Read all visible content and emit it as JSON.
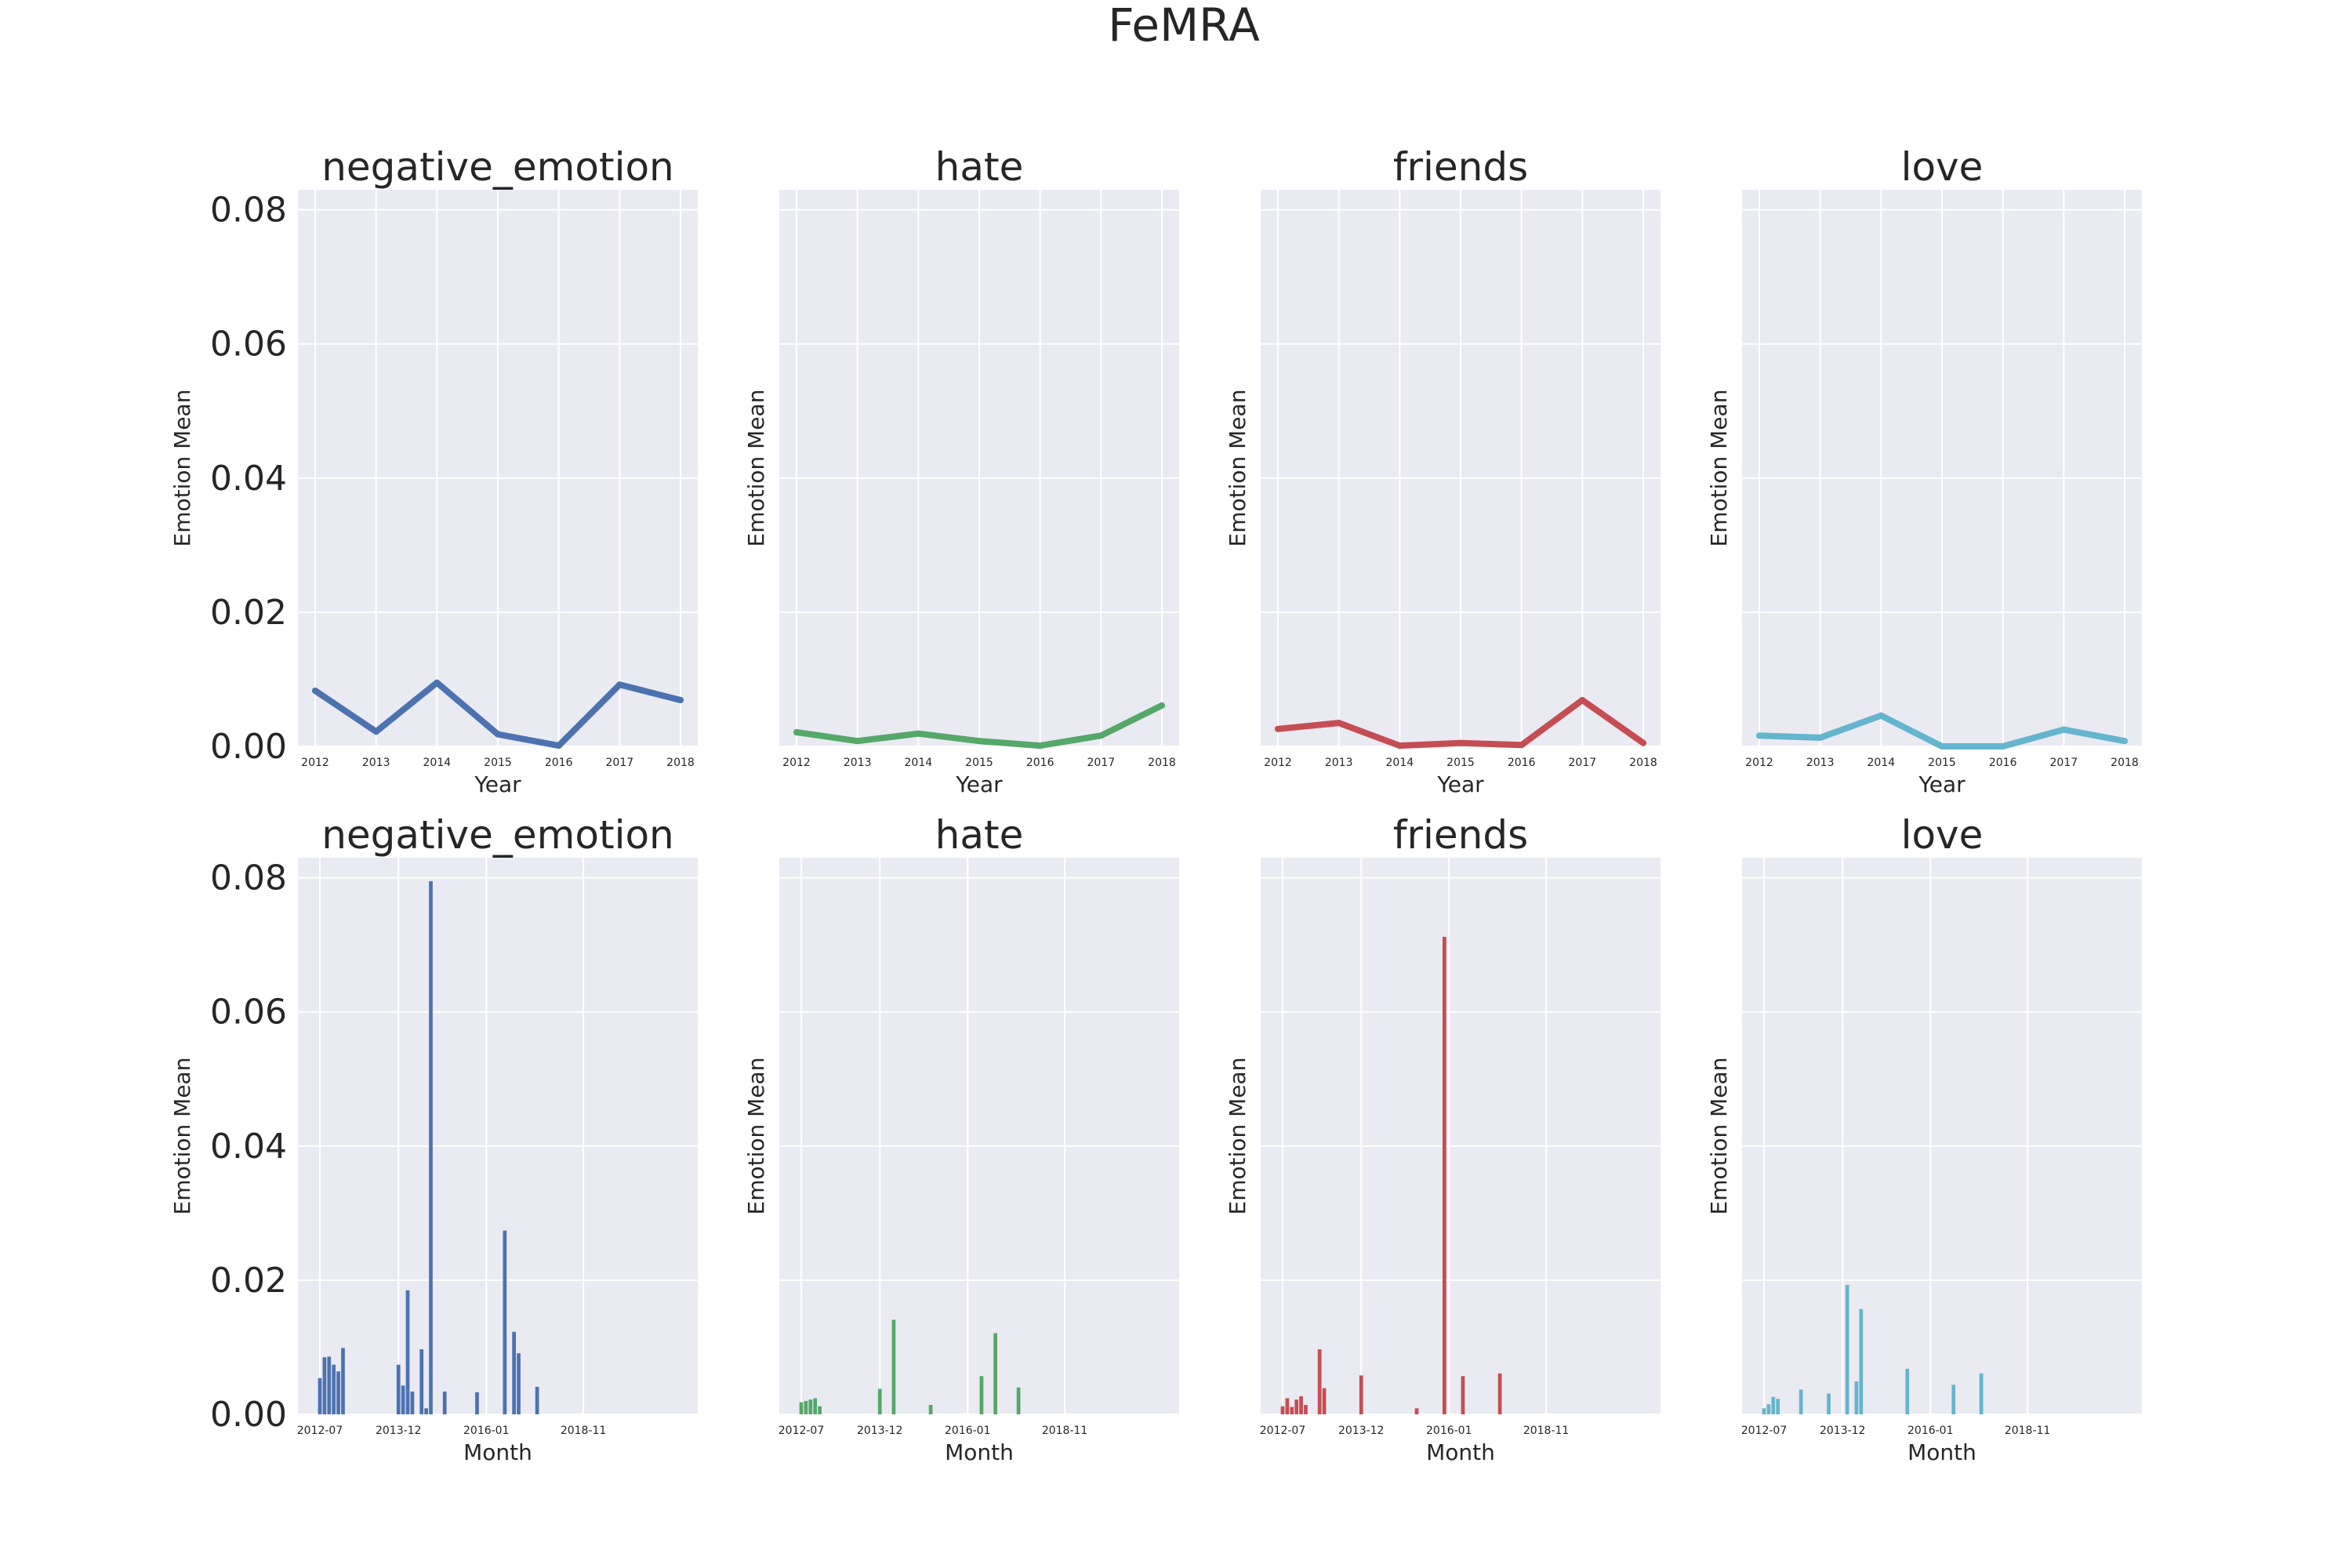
{
  "figure": {
    "title": "FeMRA"
  },
  "colors": {
    "negative_emotion": "#4c72b0",
    "hate": "#55a868",
    "friends": "#c44e52",
    "love": "#64b5cd",
    "panel_background": "#eaeaf2",
    "grid": "#ffffff",
    "text": "#262626"
  },
  "chart_data": [
    {
      "type": "line",
      "title": "negative_emotion",
      "series_key": "negative_emotion",
      "xlabel": "Year",
      "ylabel": "Emotion Mean",
      "ylim": [
        0,
        0.083
      ],
      "yticks": [
        "0.00",
        "0.02",
        "0.04",
        "0.06",
        "0.08"
      ],
      "show_ytick_labels": true,
      "grid": true,
      "x": [
        "2012",
        "2013",
        "2014",
        "2015",
        "2016",
        "2017",
        "2018"
      ],
      "values": [
        0.0083,
        0.0022,
        0.0095,
        0.0018,
        0.0001,
        0.0092,
        0.0069
      ]
    },
    {
      "type": "line",
      "title": "hate",
      "series_key": "hate",
      "xlabel": "Year",
      "ylabel": "Emotion Mean",
      "ylim": [
        0,
        0.083
      ],
      "yticks": [
        "0.00",
        "0.02",
        "0.04",
        "0.06",
        "0.08"
      ],
      "show_ytick_labels": false,
      "grid": true,
      "x": [
        "2012",
        "2013",
        "2014",
        "2015",
        "2016",
        "2017",
        "2018"
      ],
      "values": [
        0.0021,
        0.0008,
        0.0019,
        0.0008,
        0.0001,
        0.0016,
        0.0061
      ]
    },
    {
      "type": "line",
      "title": "friends",
      "series_key": "friends",
      "xlabel": "Year",
      "ylabel": "Emotion Mean",
      "ylim": [
        0,
        0.083
      ],
      "yticks": [
        "0.00",
        "0.02",
        "0.04",
        "0.06",
        "0.08"
      ],
      "show_ytick_labels": false,
      "grid": true,
      "x": [
        "2012",
        "2013",
        "2014",
        "2015",
        "2016",
        "2017",
        "2018"
      ],
      "values": [
        0.0026,
        0.0035,
        0.0001,
        0.0005,
        0.0002,
        0.0069,
        0.0005
      ]
    },
    {
      "type": "line",
      "title": "love",
      "series_key": "love",
      "xlabel": "Year",
      "ylabel": "Emotion Mean",
      "ylim": [
        0,
        0.083
      ],
      "yticks": [
        "0.00",
        "0.02",
        "0.04",
        "0.06",
        "0.08"
      ],
      "show_ytick_labels": false,
      "grid": true,
      "x": [
        "2012",
        "2013",
        "2014",
        "2015",
        "2016",
        "2017",
        "2018"
      ],
      "values": [
        0.0016,
        0.0013,
        0.0046,
        0.0,
        0.0,
        0.0025,
        0.0008
      ]
    },
    {
      "type": "bar",
      "title": "negative_emotion",
      "series_key": "negative_emotion",
      "xlabel": "Month",
      "ylabel": "Emotion Mean",
      "ylim": [
        0,
        0.083
      ],
      "yticks": [
        "0.00",
        "0.02",
        "0.04",
        "0.06",
        "0.08"
      ],
      "show_ytick_labels": true,
      "grid": true,
      "x_range": [
        0,
        77
      ],
      "x_tick_positions": [
        0,
        17,
        36,
        57
      ],
      "x_tick_labels": [
        "2012-07",
        "2013-12",
        "2016-01",
        "2018-11"
      ],
      "points": [
        [
          0,
          0.0054
        ],
        [
          1,
          0.0085
        ],
        [
          2,
          0.0086
        ],
        [
          3,
          0.0074
        ],
        [
          4,
          0.0064
        ],
        [
          5,
          0.0099
        ],
        [
          17,
          0.0074
        ],
        [
          18,
          0.0043
        ],
        [
          19,
          0.0185
        ],
        [
          20,
          0.0034
        ],
        [
          22,
          0.0097
        ],
        [
          23,
          0.0009
        ],
        [
          24,
          0.0795
        ],
        [
          27,
          0.0034
        ],
        [
          34,
          0.0033
        ],
        [
          40,
          0.0274
        ],
        [
          42,
          0.0123
        ],
        [
          43,
          0.0091
        ],
        [
          47,
          0.0041
        ]
      ]
    },
    {
      "type": "bar",
      "title": "hate",
      "series_key": "hate",
      "xlabel": "Month",
      "ylabel": "Emotion Mean",
      "ylim": [
        0,
        0.083
      ],
      "yticks": [
        "0.00",
        "0.02",
        "0.04",
        "0.06",
        "0.08"
      ],
      "show_ytick_labels": false,
      "grid": true,
      "x_range": [
        0,
        77
      ],
      "x_tick_positions": [
        0,
        17,
        36,
        57
      ],
      "x_tick_labels": [
        "2012-07",
        "2013-12",
        "2016-01",
        "2018-11"
      ],
      "points": [
        [
          0,
          0.0018
        ],
        [
          1,
          0.002
        ],
        [
          2,
          0.0022
        ],
        [
          3,
          0.0024
        ],
        [
          4,
          0.0012
        ],
        [
          17,
          0.0038
        ],
        [
          20,
          0.0141
        ],
        [
          28,
          0.0014
        ],
        [
          39,
          0.0057
        ],
        [
          42,
          0.0121
        ],
        [
          47,
          0.004
        ]
      ]
    },
    {
      "type": "bar",
      "title": "friends",
      "series_key": "friends",
      "xlabel": "Month",
      "ylabel": "Emotion Mean",
      "ylim": [
        0,
        0.083
      ],
      "yticks": [
        "0.00",
        "0.02",
        "0.04",
        "0.06",
        "0.08"
      ],
      "show_ytick_labels": false,
      "grid": true,
      "x_range": [
        0,
        77
      ],
      "x_tick_positions": [
        0,
        17,
        36,
        57
      ],
      "x_tick_labels": [
        "2012-07",
        "2013-12",
        "2016-01",
        "2018-11"
      ],
      "points": [
        [
          0,
          0.0012
        ],
        [
          1,
          0.0024
        ],
        [
          2,
          0.0011
        ],
        [
          3,
          0.0022
        ],
        [
          4,
          0.0027
        ],
        [
          5,
          0.0014
        ],
        [
          8,
          0.0097
        ],
        [
          9,
          0.0039
        ],
        [
          17,
          0.0058
        ],
        [
          29,
          0.0009
        ],
        [
          35,
          0.0712
        ],
        [
          39,
          0.0057
        ],
        [
          47,
          0.0061
        ]
      ]
    },
    {
      "type": "bar",
      "title": "love",
      "series_key": "love",
      "xlabel": "Month",
      "ylabel": "Emotion Mean",
      "ylim": [
        0,
        0.083
      ],
      "yticks": [
        "0.00",
        "0.02",
        "0.04",
        "0.06",
        "0.08"
      ],
      "show_ytick_labels": false,
      "grid": true,
      "x_range": [
        0,
        77
      ],
      "x_tick_positions": [
        0,
        17,
        36,
        57
      ],
      "x_tick_labels": [
        "2012-07",
        "2013-12",
        "2016-01",
        "2018-11"
      ],
      "points": [
        [
          0,
          0.0009
        ],
        [
          1,
          0.0015
        ],
        [
          2,
          0.0026
        ],
        [
          3,
          0.0023
        ],
        [
          8,
          0.0037
        ],
        [
          14,
          0.0031
        ],
        [
          18,
          0.0193
        ],
        [
          20,
          0.0049
        ],
        [
          21,
          0.0157
        ],
        [
          31,
          0.0068
        ],
        [
          41,
          0.0044
        ],
        [
          47,
          0.0061
        ]
      ]
    }
  ]
}
